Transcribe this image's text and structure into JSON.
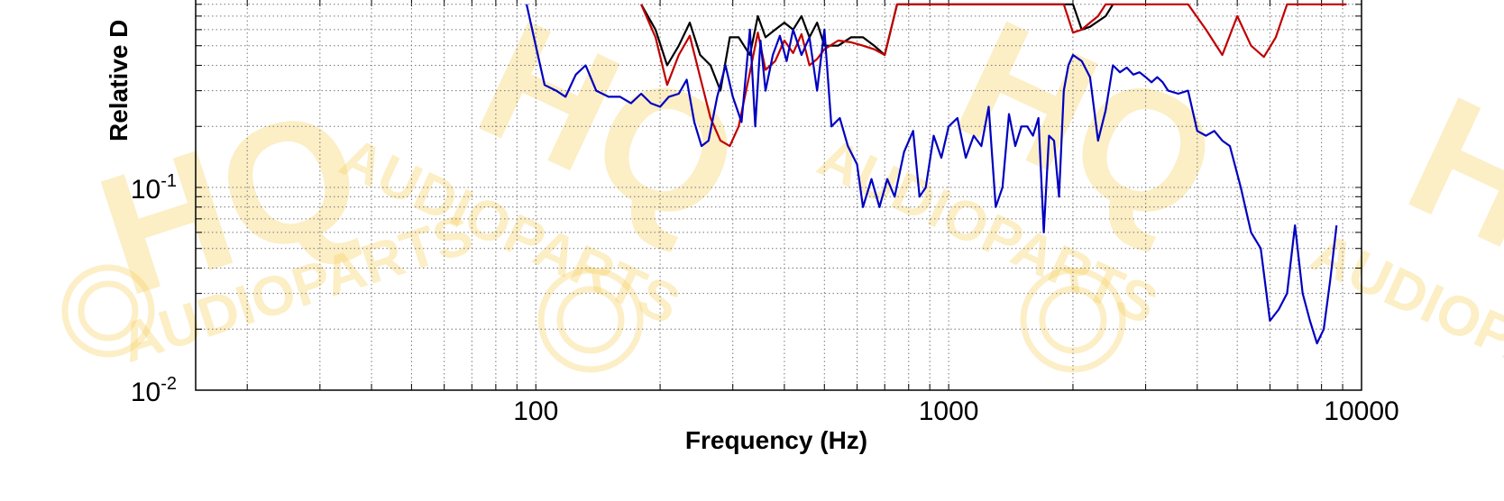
{
  "watermark": {
    "logo_text": "HQ",
    "sub_text": "AUDIOPARTS",
    "color": "#f7cf5c"
  },
  "chart_data": {
    "type": "line",
    "title": "",
    "xlabel": "Frequency (Hz)",
    "ylabel": "Relative D",
    "xscale": "log",
    "yscale": "log",
    "xlim": [
      15,
      10000
    ],
    "ylim_visible": [
      0.01,
      0.7
    ],
    "grid": true,
    "x_tick_labels": [
      {
        "value": 100,
        "text": "100"
      },
      {
        "value": 1000,
        "text": "1000"
      },
      {
        "value": 10000,
        "text": "10000"
      }
    ],
    "y_tick_labels": [
      {
        "value": 0.1,
        "base": "10",
        "exp": "-1"
      },
      {
        "value": 0.01,
        "base": "10",
        "exp": "-2"
      }
    ],
    "series": [
      {
        "color": "#000000",
        "points": [
          [
            180,
            0.8
          ],
          [
            195,
            0.6
          ],
          [
            208,
            0.4
          ],
          [
            222,
            0.5
          ],
          [
            236,
            0.65
          ],
          [
            250,
            0.45
          ],
          [
            265,
            0.4
          ],
          [
            280,
            0.3
          ],
          [
            295,
            0.55
          ],
          [
            310,
            0.55
          ],
          [
            330,
            0.45
          ],
          [
            345,
            0.7
          ],
          [
            360,
            0.55
          ],
          [
            380,
            0.6
          ],
          [
            400,
            0.65
          ],
          [
            420,
            0.6
          ],
          [
            440,
            0.7
          ],
          [
            460,
            0.55
          ],
          [
            480,
            0.65
          ],
          [
            500,
            0.5
          ],
          [
            540,
            0.5
          ],
          [
            580,
            0.55
          ],
          [
            620,
            0.55
          ],
          [
            660,
            0.5
          ],
          [
            700,
            0.45
          ],
          [
            750,
            0.8
          ],
          [
            2000,
            0.8
          ],
          [
            2100,
            0.6
          ],
          [
            2200,
            0.62
          ],
          [
            2300,
            0.66
          ],
          [
            2400,
            0.7
          ],
          [
            2500,
            0.8
          ]
        ]
      },
      {
        "color": "#c00000",
        "points": [
          [
            180,
            0.8
          ],
          [
            195,
            0.55
          ],
          [
            208,
            0.32
          ],
          [
            222,
            0.45
          ],
          [
            236,
            0.56
          ],
          [
            250,
            0.35
          ],
          [
            265,
            0.22
          ],
          [
            280,
            0.17
          ],
          [
            295,
            0.16
          ],
          [
            310,
            0.2
          ],
          [
            330,
            0.37
          ],
          [
            345,
            0.58
          ],
          [
            360,
            0.38
          ],
          [
            380,
            0.42
          ],
          [
            400,
            0.53
          ],
          [
            420,
            0.46
          ],
          [
            440,
            0.57
          ],
          [
            460,
            0.4
          ],
          [
            480,
            0.43
          ],
          [
            500,
            0.48
          ],
          [
            540,
            0.53
          ],
          [
            580,
            0.52
          ],
          [
            620,
            0.5
          ],
          [
            660,
            0.48
          ],
          [
            700,
            0.45
          ],
          [
            750,
            0.8
          ],
          [
            1900,
            0.8
          ],
          [
            2000,
            0.58
          ],
          [
            2100,
            0.6
          ],
          [
            2200,
            0.65
          ],
          [
            2300,
            0.7
          ],
          [
            2400,
            0.8
          ],
          [
            3800,
            0.8
          ],
          [
            4200,
            0.6
          ],
          [
            4600,
            0.45
          ],
          [
            5000,
            0.7
          ],
          [
            5400,
            0.5
          ],
          [
            5800,
            0.44
          ],
          [
            6200,
            0.55
          ],
          [
            6600,
            0.8
          ],
          [
            8800,
            0.8
          ],
          [
            9200,
            0.8
          ]
        ]
      },
      {
        "color": "#0000c0",
        "points": [
          [
            95,
            0.8
          ],
          [
            100,
            0.5
          ],
          [
            105,
            0.32
          ],
          [
            112,
            0.3
          ],
          [
            118,
            0.28
          ],
          [
            125,
            0.36
          ],
          [
            132,
            0.4
          ],
          [
            140,
            0.3
          ],
          [
            150,
            0.28
          ],
          [
            160,
            0.28
          ],
          [
            170,
            0.26
          ],
          [
            180,
            0.29
          ],
          [
            190,
            0.26
          ],
          [
            200,
            0.25
          ],
          [
            210,
            0.28
          ],
          [
            222,
            0.29
          ],
          [
            232,
            0.34
          ],
          [
            242,
            0.21
          ],
          [
            252,
            0.16
          ],
          [
            262,
            0.17
          ],
          [
            275,
            0.28
          ],
          [
            288,
            0.4
          ],
          [
            300,
            0.28
          ],
          [
            315,
            0.21
          ],
          [
            330,
            0.6
          ],
          [
            340,
            0.2
          ],
          [
            350,
            0.53
          ],
          [
            360,
            0.3
          ],
          [
            375,
            0.45
          ],
          [
            390,
            0.56
          ],
          [
            405,
            0.42
          ],
          [
            420,
            0.6
          ],
          [
            440,
            0.45
          ],
          [
            460,
            0.55
          ],
          [
            480,
            0.3
          ],
          [
            500,
            0.6
          ],
          [
            520,
            0.2
          ],
          [
            545,
            0.22
          ],
          [
            570,
            0.16
          ],
          [
            600,
            0.13
          ],
          [
            620,
            0.08
          ],
          [
            650,
            0.11
          ],
          [
            680,
            0.08
          ],
          [
            710,
            0.11
          ],
          [
            740,
            0.09
          ],
          [
            780,
            0.15
          ],
          [
            820,
            0.19
          ],
          [
            850,
            0.09
          ],
          [
            880,
            0.1
          ],
          [
            920,
            0.18
          ],
          [
            960,
            0.14
          ],
          [
            1000,
            0.2
          ],
          [
            1050,
            0.22
          ],
          [
            1100,
            0.14
          ],
          [
            1150,
            0.18
          ],
          [
            1200,
            0.16
          ],
          [
            1250,
            0.25
          ],
          [
            1300,
            0.08
          ],
          [
            1350,
            0.1
          ],
          [
            1400,
            0.23
          ],
          [
            1450,
            0.16
          ],
          [
            1500,
            0.2
          ],
          [
            1550,
            0.2
          ],
          [
            1600,
            0.18
          ],
          [
            1650,
            0.22
          ],
          [
            1700,
            0.06
          ],
          [
            1750,
            0.18
          ],
          [
            1800,
            0.17
          ],
          [
            1850,
            0.09
          ],
          [
            1900,
            0.3
          ],
          [
            1950,
            0.4
          ],
          [
            2000,
            0.45
          ],
          [
            2100,
            0.42
          ],
          [
            2200,
            0.35
          ],
          [
            2300,
            0.17
          ],
          [
            2400,
            0.24
          ],
          [
            2500,
            0.4
          ],
          [
            2600,
            0.37
          ],
          [
            2700,
            0.39
          ],
          [
            2800,
            0.36
          ],
          [
            2900,
            0.37
          ],
          [
            3000,
            0.35
          ],
          [
            3100,
            0.33
          ],
          [
            3200,
            0.35
          ],
          [
            3300,
            0.33
          ],
          [
            3400,
            0.3
          ],
          [
            3600,
            0.29
          ],
          [
            3800,
            0.3
          ],
          [
            4000,
            0.19
          ],
          [
            4200,
            0.18
          ],
          [
            4400,
            0.19
          ],
          [
            4600,
            0.17
          ],
          [
            4800,
            0.16
          ],
          [
            5100,
            0.1
          ],
          [
            5400,
            0.06
          ],
          [
            5700,
            0.05
          ],
          [
            6000,
            0.022
          ],
          [
            6300,
            0.025
          ],
          [
            6600,
            0.03
          ],
          [
            6900,
            0.065
          ],
          [
            7200,
            0.03
          ],
          [
            7500,
            0.022
          ],
          [
            7800,
            0.017
          ],
          [
            8100,
            0.02
          ],
          [
            8400,
            0.035
          ],
          [
            8700,
            0.065
          ]
        ]
      }
    ]
  }
}
